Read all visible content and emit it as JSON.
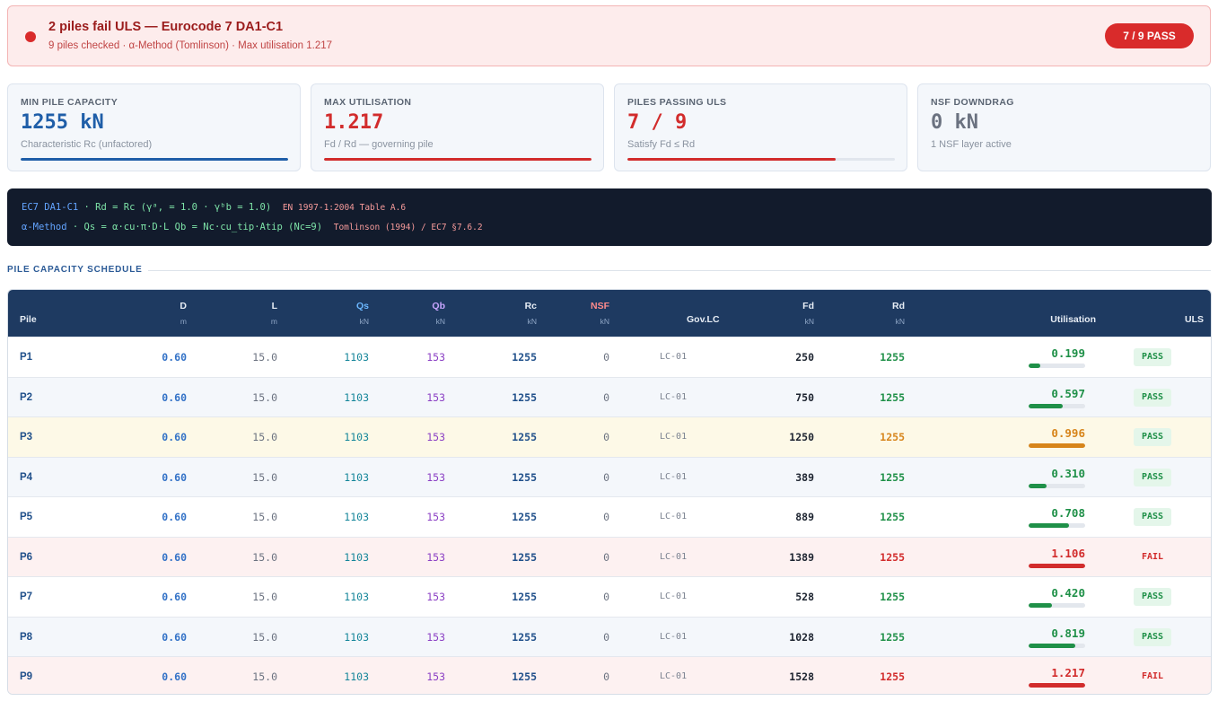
{
  "alert": {
    "title": "2 piles fail ULS — Eurocode 7 DA1-C1",
    "subtitle": "9 piles checked · α-Method (Tomlinson) · Max utilisation 1.217",
    "badge": "7 / 9 PASS"
  },
  "kpis": [
    {
      "label": "MIN PILE CAPACITY",
      "value": "1255 kN",
      "sub": "Characteristic Rc (unfactored)",
      "color": "#1f5ea8",
      "progress": 1.0
    },
    {
      "label": "MAX UTILISATION",
      "value": "1.217",
      "sub": "Fd / Rd — governing pile",
      "color": "#d22c2c",
      "progress": 1.0
    },
    {
      "label": "PILES PASSING ULS",
      "value": "7 / 9",
      "sub": "Satisfy Fd ≤ Rd",
      "color": "#d22c2c",
      "progress": 0.778
    },
    {
      "label": "NSF DOWNDRAG",
      "value": "0 kN",
      "sub": "1 NSF layer active",
      "color": "#6b7280",
      "progress": 0
    }
  ],
  "formula": {
    "line1_key": "EC7 DA1-C1",
    "line1_eq": " · Rd = Rc (γᵃ, = 1.0 · γᵇb = 1.0)",
    "line1_ref": "EN 1997-1:2004 Table A.6",
    "line2_key": "α-Method",
    "line2_eq": " · Qs = α·cu·π·D·L Qb = Nc·cu_tip·Atip (Nc=9)",
    "line2_ref": "Tomlinson (1994) / EC7 §7.6.2"
  },
  "section_title": "PILE CAPACITY SCHEDULE",
  "table": {
    "headers": {
      "pile": "Pile",
      "d": "D",
      "d_unit": "m",
      "l": "L",
      "l_unit": "m",
      "qs": "Qs",
      "qs_unit": "kN",
      "qb": "Qb",
      "qb_unit": "kN",
      "rc": "Rc",
      "rc_unit": "kN",
      "nsf": "NSF",
      "nsf_unit": "kN",
      "lc": "Gov.LC",
      "fd": "Fd",
      "fd_unit": "kN",
      "rd": "Rd",
      "rd_unit": "kN",
      "util": "Utilisation",
      "uls": "ULS"
    },
    "rows": [
      {
        "pile": "P1",
        "d": "0.60",
        "l": "15.0",
        "qs": "1103",
        "qb": "153",
        "rc": "1255",
        "nsf": "0",
        "lc": "LC-01",
        "fd": "250",
        "rd": "1255",
        "util": "0.199",
        "ratio": 0.199,
        "status": "PASS",
        "tone": "pass"
      },
      {
        "pile": "P2",
        "d": "0.60",
        "l": "15.0",
        "qs": "1103",
        "qb": "153",
        "rc": "1255",
        "nsf": "0",
        "lc": "LC-01",
        "fd": "750",
        "rd": "1255",
        "util": "0.597",
        "ratio": 0.597,
        "status": "PASS",
        "tone": "pass"
      },
      {
        "pile": "P3",
        "d": "0.60",
        "l": "15.0",
        "qs": "1103",
        "qb": "153",
        "rc": "1255",
        "nsf": "0",
        "lc": "LC-01",
        "fd": "1250",
        "rd": "1255",
        "util": "0.996",
        "ratio": 0.996,
        "status": "PASS",
        "tone": "warn"
      },
      {
        "pile": "P4",
        "d": "0.60",
        "l": "15.0",
        "qs": "1103",
        "qb": "153",
        "rc": "1255",
        "nsf": "0",
        "lc": "LC-01",
        "fd": "389",
        "rd": "1255",
        "util": "0.310",
        "ratio": 0.31,
        "status": "PASS",
        "tone": "pass"
      },
      {
        "pile": "P5",
        "d": "0.60",
        "l": "15.0",
        "qs": "1103",
        "qb": "153",
        "rc": "1255",
        "nsf": "0",
        "lc": "LC-01",
        "fd": "889",
        "rd": "1255",
        "util": "0.708",
        "ratio": 0.708,
        "status": "PASS",
        "tone": "pass"
      },
      {
        "pile": "P6",
        "d": "0.60",
        "l": "15.0",
        "qs": "1103",
        "qb": "153",
        "rc": "1255",
        "nsf": "0",
        "lc": "LC-01",
        "fd": "1389",
        "rd": "1255",
        "util": "1.106",
        "ratio": 1.0,
        "status": "FAIL",
        "tone": "fail"
      },
      {
        "pile": "P7",
        "d": "0.60",
        "l": "15.0",
        "qs": "1103",
        "qb": "153",
        "rc": "1255",
        "nsf": "0",
        "lc": "LC-01",
        "fd": "528",
        "rd": "1255",
        "util": "0.420",
        "ratio": 0.42,
        "status": "PASS",
        "tone": "pass"
      },
      {
        "pile": "P8",
        "d": "0.60",
        "l": "15.0",
        "qs": "1103",
        "qb": "153",
        "rc": "1255",
        "nsf": "0",
        "lc": "LC-01",
        "fd": "1028",
        "rd": "1255",
        "util": "0.819",
        "ratio": 0.819,
        "status": "PASS",
        "tone": "pass"
      },
      {
        "pile": "P9",
        "d": "0.60",
        "l": "15.0",
        "qs": "1103",
        "qb": "153",
        "rc": "1255",
        "nsf": "0",
        "lc": "LC-01",
        "fd": "1528",
        "rd": "1255",
        "util": "1.217",
        "ratio": 1.0,
        "status": "FAIL",
        "tone": "fail"
      }
    ]
  },
  "colors": {
    "pass": "#1f9048",
    "warn": "#d7851b",
    "fail": "#d22c2c",
    "row_white": "#ffffff",
    "row_alt": "#f4f7fb",
    "row_warn": "#fdf9e7",
    "row_fail": "#fdf1f1"
  }
}
